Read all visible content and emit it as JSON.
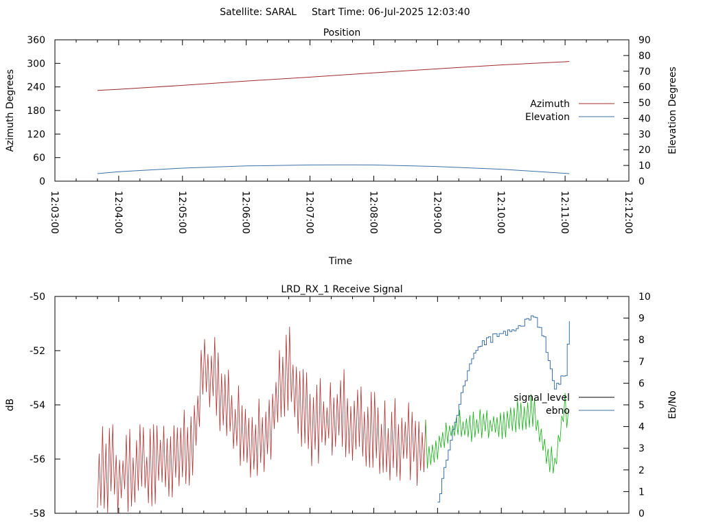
{
  "header": {
    "satellite_label": "Satellite: SARAL",
    "start_time_label": "Start Time: 06-Jul-2025 12:03:40"
  },
  "colors": {
    "azimuth": "#a0282c",
    "elevation": "#3a6fa5",
    "signal_red": "#b03030",
    "signal_green": "#12b012",
    "ebno": "#3a6fa5",
    "legend_signal": "#000000",
    "axis": "#000000"
  },
  "chart_data": [
    {
      "type": "line",
      "title": "Position",
      "xlabel": "Time",
      "ylabel": "Azimuth Degrees",
      "y2label": "Elevation Degrees",
      "xlim": [
        "12:03:00",
        "12:12:00"
      ],
      "x_ticks": [
        "12:03:00",
        "12:04:00",
        "12:05:00",
        "12:06:00",
        "12:07:00",
        "12:08:00",
        "12:09:00",
        "12:10:00",
        "12:11:00",
        "12:12:00"
      ],
      "ylim": [
        0,
        360
      ],
      "y_ticks": [
        "0",
        "60",
        "120",
        "180",
        "240",
        "300",
        "360"
      ],
      "y2lim": [
        0,
        90
      ],
      "y2_ticks": [
        "0",
        "10",
        "20",
        "30",
        "40",
        "50",
        "60",
        "70",
        "80",
        "90"
      ],
      "grid": false,
      "legend_position": "right",
      "series": [
        {
          "name": "Azimuth",
          "axis": "y",
          "x": [
            "12:03:40",
            "12:04:00",
            "12:05:00",
            "12:06:00",
            "12:07:00",
            "12:08:00",
            "12:09:00",
            "12:10:00",
            "12:11:00",
            "12:11:04"
          ],
          "values": [
            231,
            234,
            244,
            255,
            265,
            276,
            286,
            296,
            304,
            305
          ]
        },
        {
          "name": "Elevation",
          "axis": "y2",
          "x": [
            "12:03:40",
            "12:04:00",
            "12:05:00",
            "12:06:00",
            "12:07:00",
            "12:07:30",
            "12:08:00",
            "12:09:00",
            "12:10:00",
            "12:11:04"
          ],
          "values": [
            4.8,
            6.0,
            8.3,
            9.7,
            10.3,
            10.4,
            10.3,
            9.3,
            7.6,
            4.8
          ]
        }
      ]
    },
    {
      "type": "line",
      "title": "LRD_RX_1 Receive Signal",
      "ylabel": "dB",
      "y2label": "Eb/No",
      "xlim": [
        "12:03:00",
        "12:12:00"
      ],
      "ylim": [
        -58,
        -50
      ],
      "y_ticks": [
        "-58",
        "-56",
        "-54",
        "-52",
        "-50"
      ],
      "y2lim": [
        0,
        10
      ],
      "y2_ticks": [
        "0",
        "1",
        "2",
        "3",
        "4",
        "5",
        "6",
        "7",
        "8",
        "9",
        "10"
      ],
      "grid": false,
      "legend_position": "right",
      "series": [
        {
          "name": "signal_level",
          "axis": "y",
          "x": [
            "12:03:40",
            "12:04:30",
            "12:05:10",
            "12:05:20",
            "12:06:00",
            "12:06:20",
            "12:06:40",
            "12:07:00",
            "12:07:30",
            "12:08:00",
            "12:08:30",
            "12:08:50",
            "12:09:10",
            "12:09:40",
            "12:10:00",
            "12:10:30",
            "12:10:50",
            "12:11:00",
            "12:11:04"
          ],
          "values": [
            -56.8,
            -56.5,
            -55.8,
            -52.5,
            -55.5,
            -55.2,
            -53.0,
            -55.0,
            -54.5,
            -55.5,
            -55.5,
            -56.0,
            -55.0,
            -54.8,
            -54.8,
            -54.3,
            -56.5,
            -54.0,
            -55.0
          ]
        },
        {
          "name": "ebno",
          "axis": "y2",
          "x": [
            "12:09:00",
            "12:09:10",
            "12:09:20",
            "12:09:30",
            "12:09:40",
            "12:10:00",
            "12:10:20",
            "12:10:30",
            "12:10:40",
            "12:10:50",
            "12:11:00",
            "12:11:04"
          ],
          "values": [
            0.5,
            3.0,
            5.0,
            7.0,
            7.8,
            8.3,
            8.7,
            9.2,
            8.0,
            5.8,
            6.5,
            8.9
          ]
        }
      ]
    }
  ]
}
